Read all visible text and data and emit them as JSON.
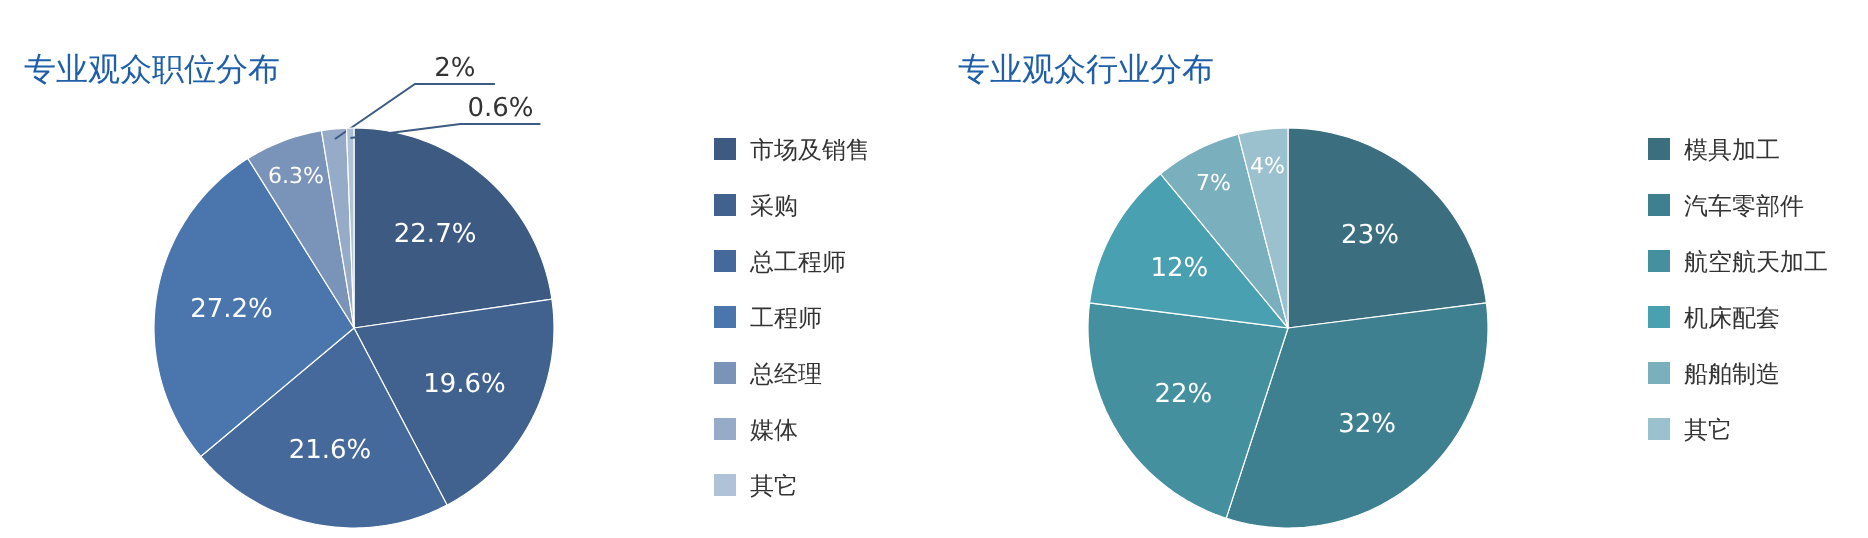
{
  "chart_data": [
    {
      "type": "pie",
      "title": "专业观众职位分布",
      "categories": [
        "市场及销售",
        "采购",
        "总工程师",
        "工程师",
        "总经理",
        "媒体",
        "其它"
      ],
      "values": [
        22.7,
        19.6,
        21.6,
        27.2,
        6.3,
        2,
        0.6
      ],
      "colors": [
        "#3c5a82",
        "#41628e",
        "#44699a",
        "#4a76ad",
        "#7a93b8",
        "#95abc8",
        "#b0c2d7"
      ],
      "value_labels": [
        "22.7%",
        "19.6%",
        "21.6%",
        "27.2%",
        "6.3%",
        "2%",
        "0.6%"
      ],
      "legend": "right"
    },
    {
      "type": "pie",
      "title": "专业观众行业分布",
      "categories": [
        "模具加工",
        "汽车零部件",
        "航空航天加工",
        "机床配套",
        "船舶制造",
        "其它"
      ],
      "values": [
        23,
        32,
        22,
        12,
        7,
        4
      ],
      "colors": [
        "#3b6f80",
        "#3f8090",
        "#44909f",
        "#48a0b0",
        "#7aafbe",
        "#9bc1cf"
      ],
      "value_labels": [
        "23%",
        "32%",
        "22%",
        "12%",
        "7%",
        "4%"
      ],
      "legend": "right"
    }
  ]
}
